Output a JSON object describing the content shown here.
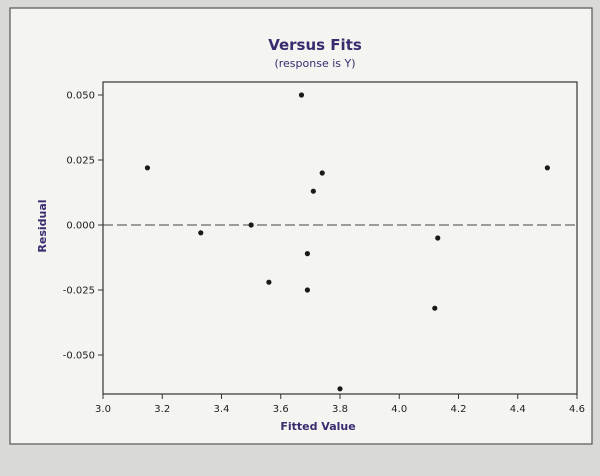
{
  "chart_data": {
    "type": "scatter",
    "title": "Versus Fits",
    "subtitle": "(response is Y)",
    "xlabel": "Fitted Value",
    "ylabel": "Residual",
    "xlim": [
      3.0,
      4.6
    ],
    "ylim": [
      -0.065,
      0.055
    ],
    "x_ticks": [
      3.0,
      3.2,
      3.4,
      3.6,
      3.8,
      4.0,
      4.2,
      4.4,
      4.6
    ],
    "x_tick_labels": [
      "3.0",
      "3.2",
      "3.4",
      "3.6",
      "3.8",
      "4.0",
      "4.2",
      "4.4",
      "4.6"
    ],
    "y_ticks": [
      0.05,
      0.025,
      0.0,
      -0.025,
      -0.05
    ],
    "y_tick_labels": [
      "0.050",
      "0.025",
      "0.000",
      "-0.025",
      "-0.050"
    ],
    "reference_line_y": 0,
    "grid": false,
    "points": [
      {
        "x": 3.15,
        "y": 0.022
      },
      {
        "x": 3.33,
        "y": -0.003
      },
      {
        "x": 3.5,
        "y": 0.0
      },
      {
        "x": 3.56,
        "y": -0.022
      },
      {
        "x": 3.67,
        "y": 0.05
      },
      {
        "x": 3.69,
        "y": -0.011
      },
      {
        "x": 3.69,
        "y": -0.025
      },
      {
        "x": 3.71,
        "y": 0.013
      },
      {
        "x": 3.74,
        "y": 0.02
      },
      {
        "x": 3.8,
        "y": -0.063
      },
      {
        "x": 4.12,
        "y": -0.032
      },
      {
        "x": 4.13,
        "y": -0.005
      },
      {
        "x": 4.5,
        "y": 0.022
      }
    ],
    "colors": {
      "title": "#3a2a6e",
      "points": "#1a1a1a",
      "frame": "#333333",
      "background": "#f4f4f1"
    }
  }
}
